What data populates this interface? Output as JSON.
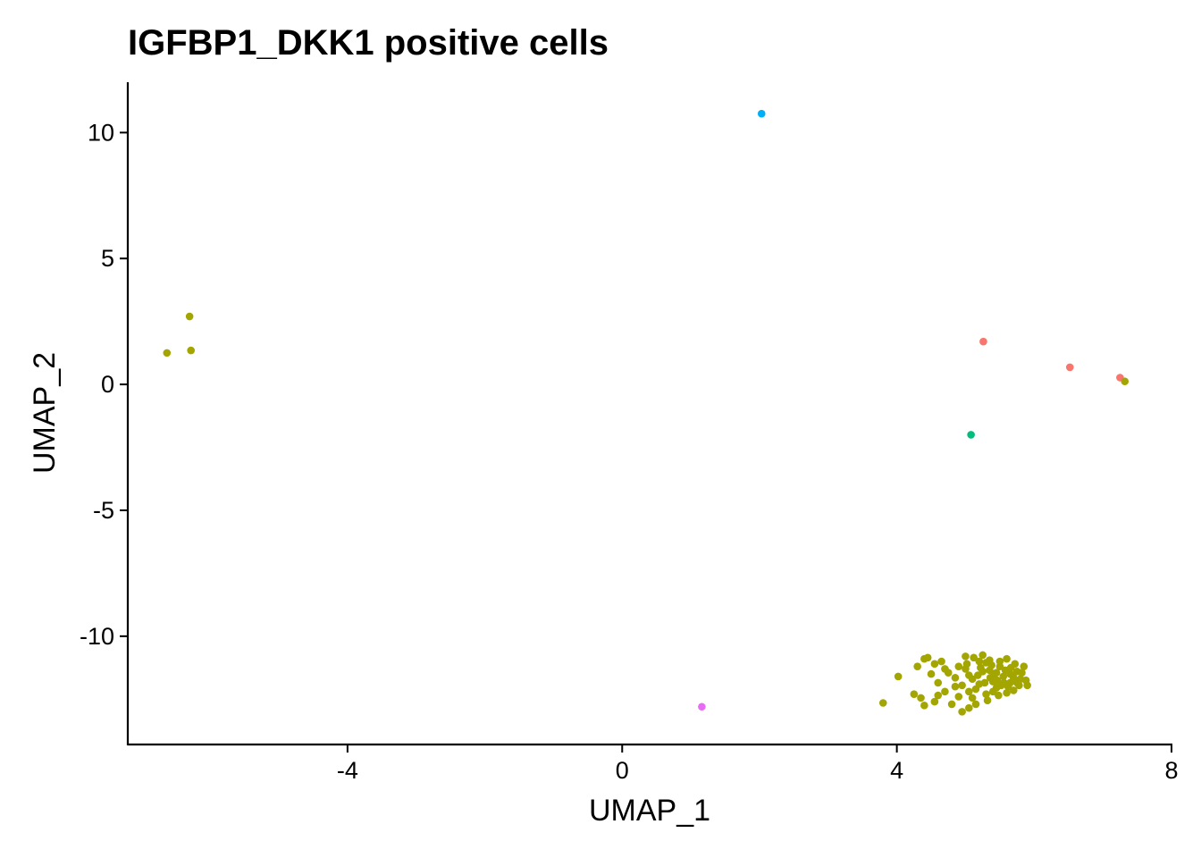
{
  "chart_data": {
    "type": "scatter",
    "title": "IGFBP1_DKK1 positive cells",
    "xlabel": "UMAP_1",
    "ylabel": "UMAP_2",
    "xlim": [
      -7.2,
      8
    ],
    "ylim": [
      -14.3,
      12
    ],
    "xticks": [
      -4,
      0,
      4,
      8
    ],
    "xtick_labels": [
      "-4",
      "0",
      "4",
      "8"
    ],
    "yticks": [
      -10,
      -5,
      0,
      5,
      10
    ],
    "ytick_labels": [
      "-10",
      "-5",
      "0",
      "5",
      "10"
    ],
    "grid": false,
    "legend": "none",
    "series": [
      {
        "color": "#F8766D",
        "points": [
          [
            5.26,
            1.7
          ],
          [
            6.52,
            0.68
          ],
          [
            7.25,
            0.27
          ]
        ]
      },
      {
        "color": "#A3A500",
        "points": [
          [
            -6.3,
            2.7
          ],
          [
            -6.63,
            1.25
          ],
          [
            -6.28,
            1.35
          ],
          [
            7.32,
            0.12
          ],
          [
            3.8,
            -12.65
          ],
          [
            4.02,
            -11.6
          ],
          [
            4.35,
            -12.45
          ],
          [
            4.4,
            -12.75
          ],
          [
            4.55,
            -12.6
          ],
          [
            4.3,
            -11.2
          ],
          [
            4.4,
            -10.9
          ],
          [
            4.5,
            -11.5
          ],
          [
            4.6,
            -11.85
          ],
          [
            4.7,
            -12.2
          ],
          [
            4.8,
            -12.7
          ],
          [
            4.9,
            -12.4
          ],
          [
            4.95,
            -13.0
          ],
          [
            5.0,
            -11.3
          ],
          [
            5.05,
            -12.85
          ],
          [
            5.1,
            -11.7
          ],
          [
            5.15,
            -12.1
          ],
          [
            5.2,
            -11.0
          ],
          [
            5.25,
            -11.4
          ],
          [
            5.3,
            -12.3
          ],
          [
            5.35,
            -10.95
          ],
          [
            5.4,
            -11.8
          ],
          [
            5.45,
            -12.05
          ],
          [
            5.5,
            -11.2
          ],
          [
            5.55,
            -11.6
          ],
          [
            5.6,
            -10.9
          ],
          [
            5.65,
            -11.85
          ],
          [
            5.7,
            -12.15
          ],
          [
            5.75,
            -11.4
          ],
          [
            5.8,
            -11.7
          ],
          [
            5.85,
            -11.2
          ],
          [
            5.9,
            -11.95
          ],
          [
            4.45,
            -10.85
          ],
          [
            4.55,
            -11.1
          ],
          [
            4.65,
            -11.0
          ],
          [
            4.75,
            -11.45
          ],
          [
            4.85,
            -11.65
          ],
          [
            4.95,
            -11.95
          ],
          [
            5.05,
            -12.2
          ],
          [
            5.12,
            -10.85
          ],
          [
            5.18,
            -11.55
          ],
          [
            5.28,
            -11.85
          ],
          [
            5.32,
            -12.55
          ],
          [
            5.38,
            -11.15
          ],
          [
            5.42,
            -11.5
          ],
          [
            5.48,
            -12.35
          ],
          [
            5.52,
            -11.95
          ],
          [
            5.58,
            -11.35
          ],
          [
            5.62,
            -12.0
          ],
          [
            5.68,
            -11.55
          ],
          [
            5.72,
            -11.1
          ],
          [
            5.78,
            -11.95
          ],
          [
            5.82,
            -11.45
          ],
          [
            5.88,
            -11.75
          ],
          [
            5.0,
            -10.8
          ],
          [
            5.22,
            -11.25
          ],
          [
            5.36,
            -11.65
          ],
          [
            5.46,
            -11.75
          ],
          [
            5.56,
            -11.85
          ],
          [
            5.66,
            -11.25
          ],
          [
            5.15,
            -12.7
          ],
          [
            4.25,
            -12.3
          ],
          [
            4.6,
            -12.35
          ],
          [
            4.85,
            -12.0
          ],
          [
            5.02,
            -11.1
          ],
          [
            5.4,
            -12.2
          ],
          [
            5.6,
            -12.25
          ],
          [
            5.75,
            -11.85
          ],
          [
            5.25,
            -10.75
          ],
          [
            4.9,
            -11.2
          ],
          [
            5.1,
            -12.45
          ],
          [
            5.35,
            -11.35
          ],
          [
            5.5,
            -11.0
          ],
          [
            5.7,
            -11.65
          ],
          [
            5.05,
            -11.55
          ],
          [
            5.2,
            -11.9
          ],
          [
            4.7,
            -11.3
          ],
          [
            5.3,
            -11.05
          ],
          [
            5.45,
            -11.45
          ],
          [
            5.65,
            -11.5
          ]
        ]
      },
      {
        "color": "#00BF7D",
        "points": [
          [
            5.08,
            -2.0
          ]
        ]
      },
      {
        "color": "#00B0F6",
        "points": [
          [
            2.03,
            10.75
          ]
        ]
      },
      {
        "color": "#E76BF3",
        "points": [
          [
            1.16,
            -12.8
          ]
        ]
      }
    ]
  }
}
